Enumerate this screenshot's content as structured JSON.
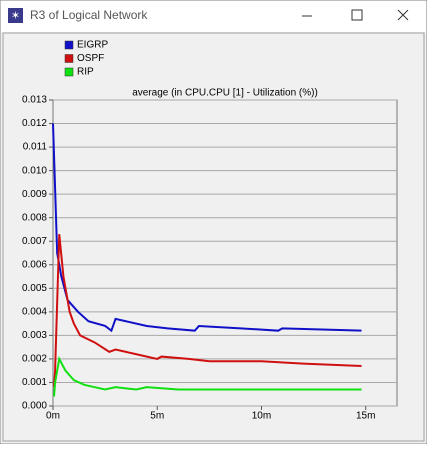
{
  "window": {
    "title": "R3 of Logical Network"
  },
  "chart_data": {
    "type": "line",
    "title": "average (in CPU.CPU [1] - Utilization (%))",
    "xlim": [
      0,
      16.5
    ],
    "xticks": [
      {
        "value": 0,
        "label": "0m"
      },
      {
        "value": 5,
        "label": "5m"
      },
      {
        "value": 10,
        "label": "10m"
      },
      {
        "value": 15,
        "label": "15m"
      }
    ],
    "ylim": [
      0,
      0.013
    ],
    "yticks": [
      {
        "value": 0,
        "label": "0.000"
      },
      0.001,
      0.002,
      0.003,
      0.004,
      0.005,
      0.006,
      0.007,
      0.008,
      0.009,
      {
        "value": 0.01,
        "label": "0.010"
      },
      0.011,
      0.012,
      0.013
    ],
    "grid": true,
    "series": [
      {
        "name": "EIGRP",
        "color": "#1010c8",
        "x": [
          0,
          0.2,
          0.4,
          0.7,
          1.2,
          1.7,
          2.5,
          2.8,
          3.0,
          3.5,
          4.5,
          5.5,
          6.8,
          7.0,
          9,
          10.8,
          11,
          14.8
        ],
        "values": [
          0.012,
          0.0065,
          0.0055,
          0.0045,
          0.004,
          0.0036,
          0.0034,
          0.0032,
          0.0037,
          0.0036,
          0.0034,
          0.0033,
          0.0032,
          0.0034,
          0.0033,
          0.0032,
          0.0033,
          0.0032
        ]
      },
      {
        "name": "OSPF",
        "color": "#d01010",
        "x": [
          0.05,
          0.1,
          0.3,
          0.5,
          0.8,
          1,
          1.3,
          2,
          2.7,
          3,
          4,
          5,
          5.2,
          6.5,
          7.5,
          10,
          12,
          14.8
        ],
        "values": [
          0.0008,
          0.0015,
          0.0073,
          0.0055,
          0.004,
          0.0035,
          0.003,
          0.0027,
          0.0023,
          0.0024,
          0.0022,
          0.002,
          0.0021,
          0.002,
          0.0019,
          0.0019,
          0.0018,
          0.0017
        ]
      },
      {
        "name": "RIP",
        "color": "#10e010",
        "x": [
          0.05,
          0.1,
          0.3,
          0.6,
          1,
          1.5,
          2,
          2.5,
          3,
          4,
          4.5,
          6,
          10,
          14.8
        ],
        "values": [
          0.0004,
          0.001,
          0.002,
          0.0015,
          0.0011,
          0.0009,
          0.0008,
          0.0007,
          0.0008,
          0.0007,
          0.0008,
          0.0007,
          0.0007,
          0.0007
        ]
      }
    ]
  }
}
